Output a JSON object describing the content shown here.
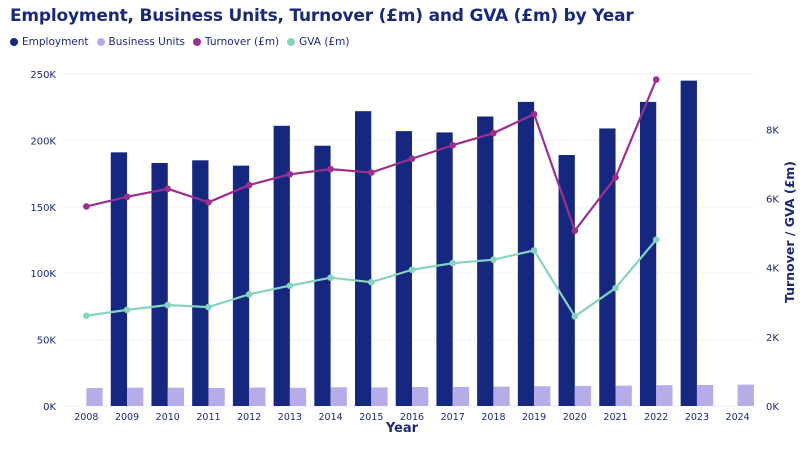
{
  "colors": {
    "employment": "#16277f",
    "business_units": "#b6ade8",
    "turnover": "#9c2f8f",
    "gva": "#86d4c0",
    "axis_text": "#1b2a78",
    "grid": "#cfcfe6"
  },
  "chart_data": {
    "type": "bar",
    "title": "Employment, Business Units, Turnover (£m) and GVA (£m) by Year",
    "xlabel": "Year",
    "ylabel": "",
    "y2label": "Turnover / GVA (£m)",
    "ylim": [
      0,
      250000
    ],
    "y2lim": [
      0,
      9600
    ],
    "categories": [
      "2008",
      "2009",
      "2010",
      "2011",
      "2012",
      "2013",
      "2014",
      "2015",
      "2016",
      "2017",
      "2018",
      "2019",
      "2020",
      "2021",
      "2022",
      "2023",
      "2024"
    ],
    "y_ticks": [
      {
        "value": 0,
        "label": "0K"
      },
      {
        "value": 50000,
        "label": "50K"
      },
      {
        "value": 100000,
        "label": "100K"
      },
      {
        "value": 150000,
        "label": "150K"
      },
      {
        "value": 200000,
        "label": "200K"
      },
      {
        "value": 250000,
        "label": "250K"
      }
    ],
    "y2_ticks": [
      {
        "value": 0,
        "label": "0K"
      },
      {
        "value": 2000,
        "label": "2K"
      },
      {
        "value": 4000,
        "label": "4K"
      },
      {
        "value": 6000,
        "label": "6K"
      },
      {
        "value": 8000,
        "label": "8K"
      }
    ],
    "grid": true,
    "legend_position": "top-left",
    "series": [
      {
        "name": "Employment",
        "kind": "bar",
        "axis": "left",
        "values": [
          null,
          191000,
          183000,
          185000,
          181000,
          211000,
          196000,
          222000,
          207000,
          206000,
          218000,
          229000,
          189000,
          209000,
          229000,
          245000,
          null
        ]
      },
      {
        "name": "Business Units",
        "kind": "bar",
        "axis": "left",
        "values": [
          13500,
          13800,
          13800,
          13600,
          13900,
          13700,
          14100,
          14000,
          14300,
          14300,
          14600,
          14900,
          15100,
          15300,
          15700,
          15800,
          16100
        ]
      },
      {
        "name": "Turnover (£m)",
        "kind": "line",
        "axis": "right",
        "values": [
          5770,
          6050,
          6280,
          5890,
          6390,
          6700,
          6850,
          6750,
          7150,
          7540,
          7890,
          8440,
          5070,
          6610,
          9440,
          null,
          null
        ]
      },
      {
        "name": "GVA (£m)",
        "kind": "line",
        "axis": "right",
        "values": [
          2610,
          2780,
          2920,
          2860,
          3230,
          3480,
          3710,
          3580,
          3940,
          4130,
          4230,
          4500,
          2590,
          3410,
          4810,
          null,
          null
        ]
      }
    ]
  }
}
